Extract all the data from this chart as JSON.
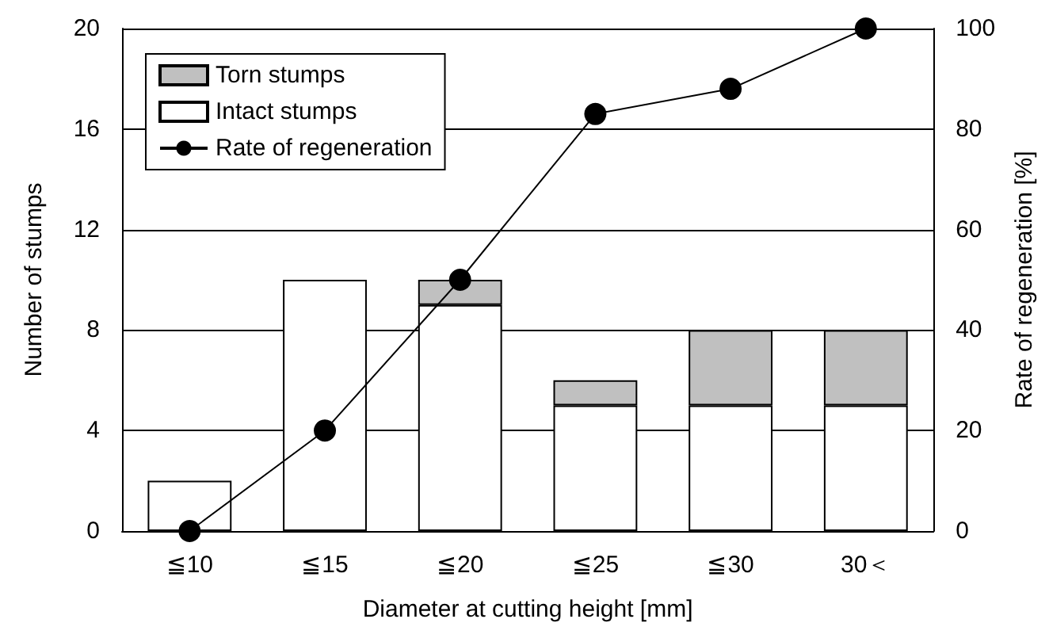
{
  "chart_data": {
    "type": "bar",
    "stacked": true,
    "xlabel": "Diameter at cutting height [mm]",
    "ylabel": "Number of stumps",
    "y2label": "Rate of regeneration [%]",
    "categories": [
      "≦10",
      "≦15",
      "≦20",
      "≦25",
      "≦30",
      "30＜"
    ],
    "series": [
      {
        "name": "Intact stumps",
        "color": "#ffffff",
        "values": [
          2,
          10,
          9,
          5,
          5,
          5
        ]
      },
      {
        "name": "Torn stumps",
        "color": "#c0c0c0",
        "values": [
          0,
          0,
          1,
          1,
          3,
          3
        ]
      },
      {
        "name": "Rate of regeneration",
        "type": "line",
        "axis": "y2",
        "color": "#000000",
        "marker": "circle",
        "values": [
          0,
          20,
          50,
          83,
          88,
          100
        ]
      }
    ],
    "ylim": [
      0,
      20
    ],
    "yticks": [
      0,
      4,
      8,
      12,
      16,
      20
    ],
    "y2lim": [
      0,
      100
    ],
    "y2ticks": [
      0,
      20,
      40,
      60,
      80,
      100
    ],
    "grid": "y",
    "legend": "top left"
  }
}
